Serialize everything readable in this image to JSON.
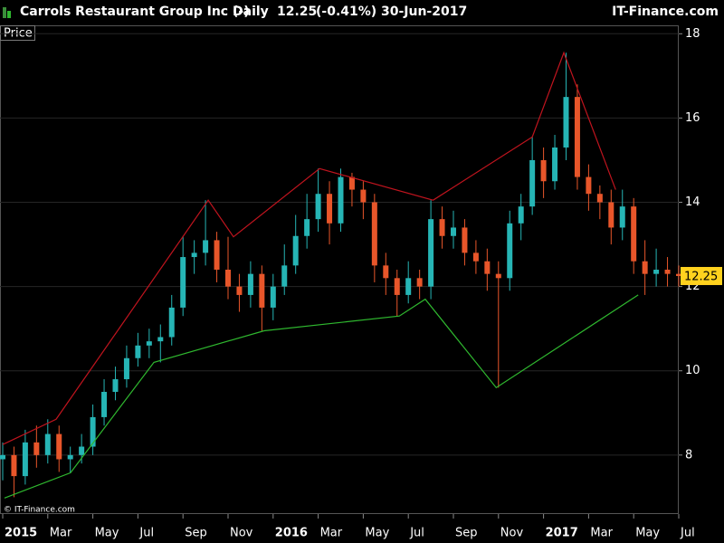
{
  "header": {
    "title": "Carrols Restaurant Group Inc (-)",
    "interval": "Daily",
    "change": "(-0.41%)",
    "date": "30-Jun-2017",
    "site": "IT-Finance.com"
  },
  "chart_data": {
    "type": "candlestick",
    "axis_label": "Price",
    "watermark": "© IT-Finance.com",
    "last_price": 12.25,
    "up_color": "#26b5b5",
    "down_color": "#e8562a",
    "grid": true,
    "xlim": [
      -0.12,
      30.0
    ],
    "ylim": [
      6.6,
      18.2
    ],
    "xticks": [
      {
        "value": 0,
        "label": "2015"
      },
      {
        "value": 2,
        "label": "Mar"
      },
      {
        "value": 4,
        "label": "May"
      },
      {
        "value": 6,
        "label": "Jul"
      },
      {
        "value": 8,
        "label": "Sep"
      },
      {
        "value": 10,
        "label": "Nov"
      },
      {
        "value": 12,
        "label": "2016"
      },
      {
        "value": 14,
        "label": "Mar"
      },
      {
        "value": 16,
        "label": "May"
      },
      {
        "value": 18,
        "label": "Jul"
      },
      {
        "value": 20,
        "label": "Sep"
      },
      {
        "value": 22,
        "label": "Nov"
      },
      {
        "value": 24,
        "label": "2017"
      },
      {
        "value": 26,
        "label": "Mar"
      },
      {
        "value": 28,
        "label": "May"
      },
      {
        "value": 30,
        "label": "Jul"
      }
    ],
    "yticks": [
      8,
      10,
      12,
      14,
      16,
      18
    ],
    "x": [
      0,
      0.5,
      1,
      1.5,
      2,
      2.5,
      3,
      3.5,
      4,
      4.5,
      5,
      5.5,
      6,
      6.5,
      7,
      7.5,
      8,
      8.5,
      9,
      9.5,
      10,
      10.5,
      11,
      11.5,
      12,
      12.5,
      13,
      13.5,
      14,
      14.5,
      15,
      15.5,
      16,
      16.5,
      17,
      17.5,
      18,
      18.5,
      19,
      19.5,
      20,
      20.5,
      21,
      21.5,
      22,
      22.5,
      23,
      23.5,
      24,
      24.5,
      25,
      25.5,
      26,
      26.5,
      27,
      27.5,
      28,
      28.5,
      29,
      29.5,
      30
    ],
    "open": [
      7.9,
      8.0,
      7.5,
      8.3,
      8.0,
      8.5,
      7.9,
      8.0,
      8.2,
      8.9,
      9.5,
      9.8,
      10.3,
      10.6,
      10.7,
      10.8,
      11.5,
      12.7,
      12.8,
      13.1,
      12.4,
      12.0,
      11.8,
      12.3,
      11.5,
      12.0,
      12.5,
      13.2,
      13.6,
      14.2,
      13.5,
      14.6,
      14.3,
      14.0,
      12.5,
      12.2,
      11.8,
      12.2,
      12.0,
      13.6,
      13.2,
      13.4,
      12.8,
      12.6,
      12.3,
      12.2,
      13.5,
      13.9,
      15.0,
      14.5,
      15.3,
      16.5,
      14.6,
      14.2,
      14.0,
      13.4,
      13.9,
      12.6,
      12.3,
      12.4,
      12.3
    ],
    "high": [
      8.3,
      8.2,
      8.6,
      8.7,
      8.85,
      8.7,
      8.2,
      8.5,
      9.2,
      9.8,
      10.1,
      10.6,
      10.9,
      11.0,
      11.1,
      11.8,
      13.2,
      13.1,
      14.05,
      13.3,
      13.18,
      12.3,
      12.6,
      12.5,
      12.3,
      13.0,
      13.7,
      14.2,
      14.8,
      14.5,
      14.8,
      14.7,
      14.5,
      14.2,
      12.8,
      12.4,
      12.6,
      12.4,
      14.05,
      13.9,
      13.8,
      13.6,
      13.1,
      12.9,
      12.6,
      13.8,
      14.2,
      15.55,
      15.3,
      15.6,
      17.55,
      16.8,
      14.9,
      14.4,
      14.3,
      14.3,
      14.1,
      13.1,
      12.9,
      12.7,
      12.5
    ],
    "low": [
      7.4,
      7.0,
      7.3,
      7.7,
      7.8,
      7.6,
      7.58,
      7.8,
      8.0,
      8.7,
      9.3,
      9.6,
      10.1,
      10.3,
      10.2,
      10.6,
      11.3,
      12.3,
      12.5,
      12.1,
      11.7,
      11.4,
      11.5,
      10.95,
      11.2,
      11.8,
      12.3,
      12.9,
      13.3,
      13.0,
      13.3,
      13.9,
      13.6,
      12.1,
      11.8,
      11.3,
      11.6,
      11.7,
      11.7,
      12.9,
      12.9,
      12.5,
      12.3,
      11.9,
      9.6,
      11.9,
      13.1,
      13.7,
      14.1,
      14.3,
      15.0,
      14.3,
      13.8,
      13.6,
      13.0,
      13.1,
      12.3,
      11.8,
      12.0,
      12.0,
      12.0
    ],
    "close": [
      8.0,
      7.5,
      8.3,
      8.0,
      8.5,
      7.9,
      8.0,
      8.2,
      8.9,
      9.5,
      9.8,
      10.3,
      10.6,
      10.7,
      10.8,
      11.5,
      12.7,
      12.8,
      13.1,
      12.4,
      12.0,
      11.8,
      12.3,
      11.5,
      12.0,
      12.5,
      13.2,
      13.6,
      14.2,
      13.5,
      14.6,
      14.3,
      14.0,
      12.5,
      12.2,
      11.8,
      12.2,
      12.0,
      13.6,
      13.2,
      13.4,
      12.8,
      12.6,
      12.3,
      12.2,
      13.5,
      13.9,
      15.0,
      14.5,
      15.3,
      16.5,
      14.6,
      14.2,
      14.0,
      13.4,
      13.9,
      12.6,
      12.3,
      12.4,
      12.3,
      12.25
    ],
    "trendlines": [
      {
        "color": "#c0141e",
        "x": [
          0,
          2.37,
          9.12,
          10.24,
          14.06,
          19.1,
          23.5,
          24.9,
          27.2
        ],
        "values": [
          8.25,
          8.85,
          14.05,
          13.18,
          14.8,
          14.05,
          15.55,
          17.55,
          14.3
        ]
      },
      {
        "color": "#2fb82f",
        "x": [
          0.08,
          3.01,
          6.71,
          11.6,
          17.6,
          18.75,
          21.9,
          28.2
        ],
        "values": [
          6.98,
          7.58,
          10.2,
          10.95,
          11.3,
          11.7,
          9.6,
          11.8
        ]
      }
    ]
  }
}
